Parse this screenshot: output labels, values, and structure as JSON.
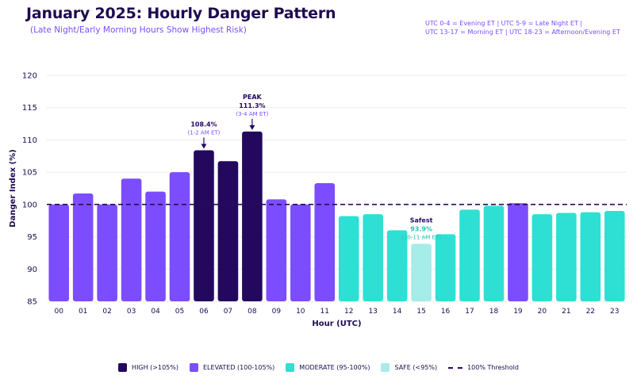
{
  "title": "January 2025: Hourly Danger Pattern",
  "subtitle": "(Late Night/Early Morning Hours Show Highest Risk)",
  "note_lines": [
    "UTC 0-4 = Evening ET | UTC 5-9 = Late Night ET |",
    "UTC 13-17 = Morning ET | UTC 18-23 = Afternoon/Evening ET"
  ],
  "colors": {
    "high": "#23085e",
    "elevated": "#7c4dff",
    "moderate": "#2ee0d4",
    "safe": "#a6ece8",
    "threshold": "#2a0a5e",
    "axis_text": "#1e0a4e",
    "grid": "#ececf2"
  },
  "legend": {
    "high": "HIGH (>105%)",
    "elevated": "ELEVATED (100-105%)",
    "moderate": "MODERATE (95-100%)",
    "safe": "SAFE (<95%)",
    "threshold": "100% Threshold"
  },
  "chart_data": {
    "type": "bar",
    "title": "January 2025: Hourly Danger Pattern",
    "xlabel": "Hour (UTC)",
    "ylabel": "Danger Index (%)",
    "ylim": [
      85,
      120
    ],
    "yticks": [
      85,
      90,
      95,
      100,
      105,
      110,
      115,
      120
    ],
    "threshold": 100,
    "categories": [
      "00",
      "01",
      "02",
      "03",
      "04",
      "05",
      "06",
      "07",
      "08",
      "09",
      "10",
      "11",
      "12",
      "13",
      "14",
      "15",
      "16",
      "17",
      "18",
      "19",
      "20",
      "21",
      "22",
      "23"
    ],
    "values": [
      100.0,
      101.7,
      100.0,
      104.0,
      102.0,
      105.0,
      108.4,
      106.7,
      111.3,
      100.8,
      100.0,
      103.3,
      98.2,
      98.5,
      96.0,
      93.9,
      95.4,
      99.2,
      99.8,
      100.2,
      98.5,
      98.7,
      98.8,
      99.0
    ],
    "levels": [
      "elevated",
      "elevated",
      "elevated",
      "elevated",
      "elevated",
      "elevated",
      "high",
      "high",
      "high",
      "elevated",
      "elevated",
      "elevated",
      "moderate",
      "moderate",
      "moderate",
      "safe",
      "moderate",
      "moderate",
      "moderate",
      "elevated",
      "moderate",
      "moderate",
      "moderate",
      "moderate"
    ],
    "annotations": [
      {
        "index": 6,
        "label": "108.4%",
        "sub": "(1-2 AM ET)",
        "kind": "arrow"
      },
      {
        "index": 8,
        "head": "PEAK",
        "label": "111.3%",
        "sub": "(3-4 AM ET)",
        "kind": "arrow"
      },
      {
        "index": 15,
        "head": "Safest",
        "label": "93.9%",
        "sub": "(10-11 AM ET)",
        "kind": "text"
      }
    ]
  }
}
